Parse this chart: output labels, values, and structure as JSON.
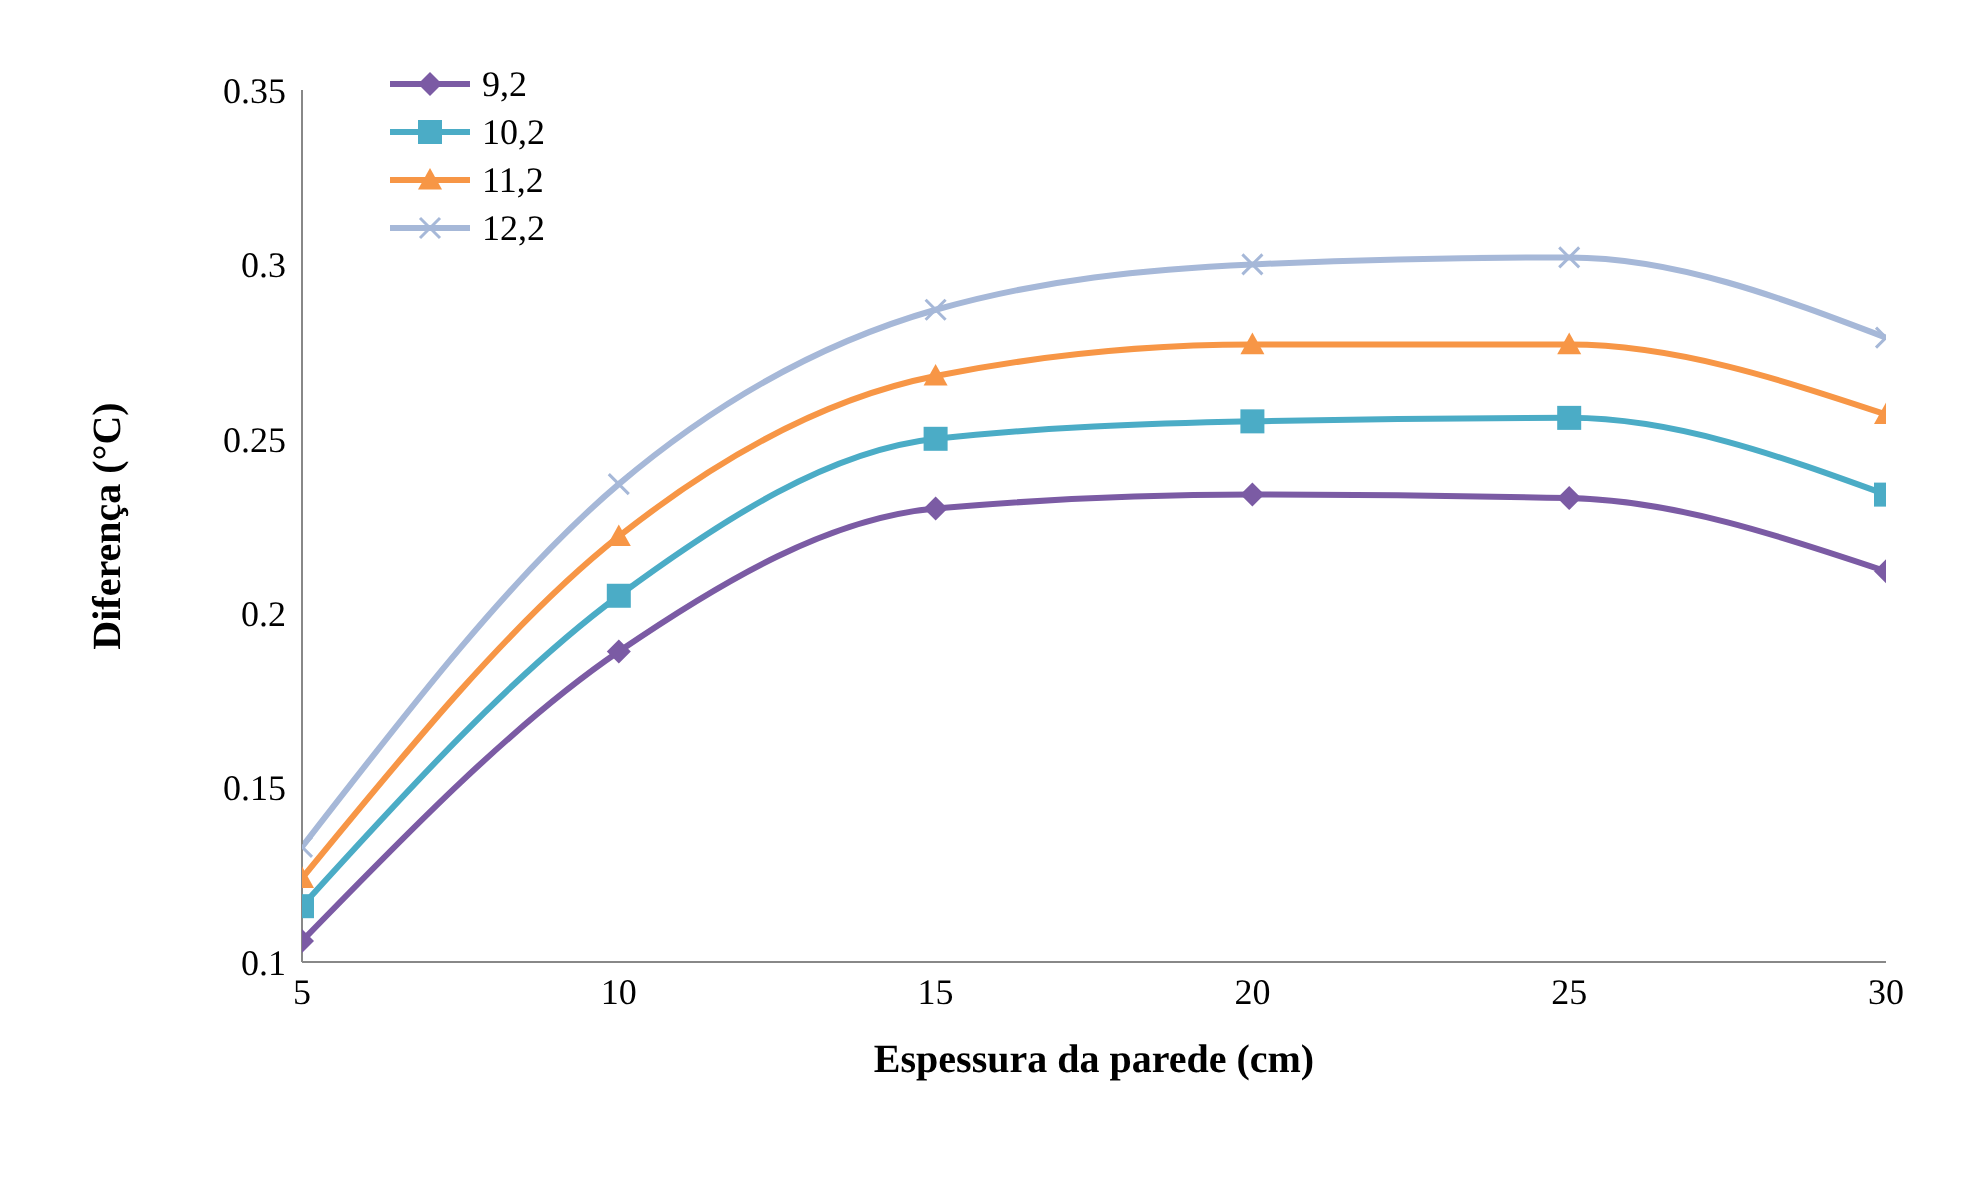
{
  "chart_data": {
    "type": "line",
    "xlabel": "Espessura da parede (cm)",
    "ylabel": "Diferença (°C)",
    "x": [
      5,
      10,
      15,
      20,
      25,
      30
    ],
    "xlim": [
      5,
      30
    ],
    "xticks": [
      5,
      10,
      15,
      20,
      25,
      30
    ],
    "ylim": [
      0.1,
      0.35
    ],
    "yticks": [
      0.1,
      0.15,
      0.2,
      0.25,
      0.3,
      0.35
    ],
    "grid": false,
    "legend": "top left",
    "series": [
      {
        "name": "9,2",
        "color": "#7b5ba4",
        "marker": "diamond",
        "values": [
          0.106,
          0.189,
          0.23,
          0.234,
          0.233,
          0.212
        ]
      },
      {
        "name": "10,2",
        "color": "#4bacc6",
        "marker": "square",
        "values": [
          0.116,
          0.205,
          0.25,
          0.255,
          0.256,
          0.234
        ]
      },
      {
        "name": "11,2",
        "color": "#f79646",
        "marker": "triangle",
        "values": [
          0.124,
          0.222,
          0.268,
          0.277,
          0.277,
          0.257
        ]
      },
      {
        "name": "12,2",
        "color": "#a6b8d8",
        "marker": "cross",
        "values": [
          0.133,
          0.237,
          0.287,
          0.3,
          0.302,
          0.279
        ]
      }
    ]
  }
}
